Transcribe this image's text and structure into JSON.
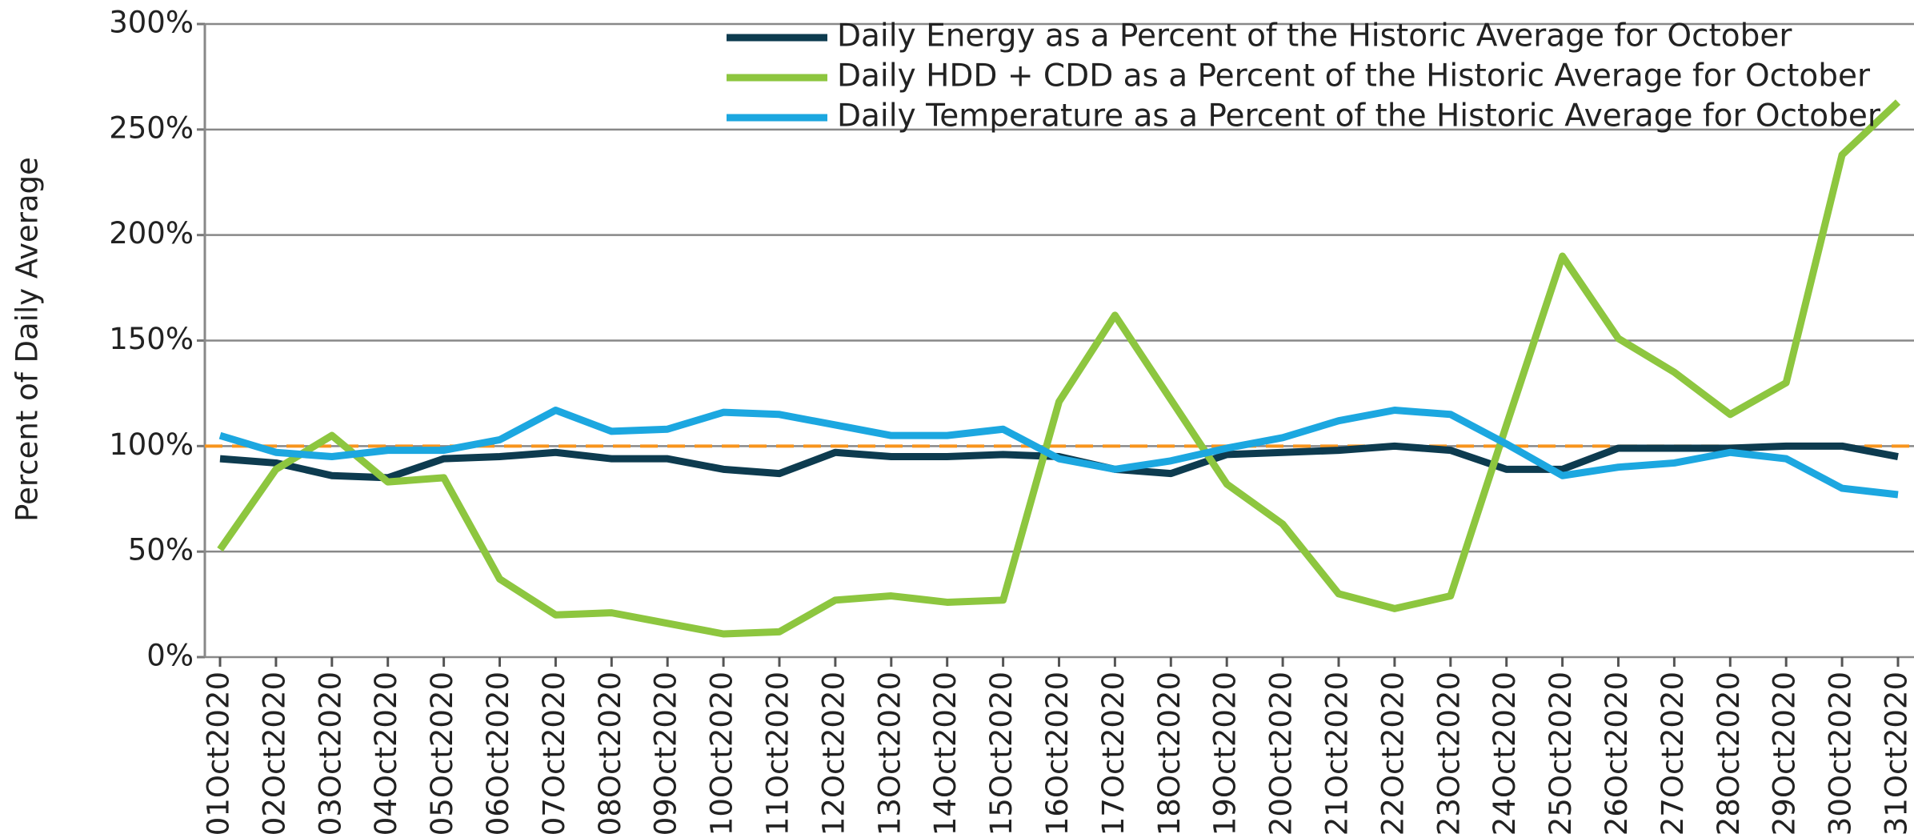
{
  "chart_data": {
    "type": "line",
    "y_label": "Percent of Daily Average",
    "categories": [
      "01Oct2020",
      "02Oct2020",
      "03Oct2020",
      "04Oct2020",
      "05Oct2020",
      "06Oct2020",
      "07Oct2020",
      "08Oct2020",
      "09Oct2020",
      "10Oct2020",
      "11Oct2020",
      "12Oct2020",
      "13Oct2020",
      "14Oct2020",
      "15Oct2020",
      "16Oct2020",
      "17Oct2020",
      "18Oct2020",
      "19Oct2020",
      "20Oct2020",
      "21Oct2020",
      "22Oct2020",
      "23Oct2020",
      "24Oct2020",
      "25Oct2020",
      "26Oct2020",
      "27Oct2020",
      "28Oct2020",
      "29Oct2020",
      "30Oct2020",
      "31Oct2020"
    ],
    "series": [
      {
        "name": "Daily Energy as a Percent of the Historic Average for October",
        "color": "#0d3b4f",
        "values": [
          94,
          92,
          86,
          85,
          94,
          95,
          97,
          94,
          94,
          89,
          87,
          97,
          95,
          95,
          96,
          95,
          89,
          87,
          96,
          97,
          98,
          100,
          98,
          89,
          89,
          99,
          99,
          99,
          100,
          100,
          95
        ]
      },
      {
        "name": "Daily HDD + CDD as a Percent of the Historic Average for October",
        "color": "#8dc63f",
        "values": [
          51,
          89,
          105,
          83,
          85,
          37,
          20,
          21,
          16,
          11,
          12,
          27,
          29,
          26,
          27,
          121,
          162,
          122,
          82,
          63,
          30,
          23,
          29,
          110,
          190,
          151,
          135,
          115,
          130,
          238,
          263
        ]
      },
      {
        "name": "Daily Temperature as a Percent of the Historic Average for October",
        "color": "#1ca7e0",
        "values": [
          105,
          97,
          95,
          98,
          98,
          103,
          117,
          107,
          108,
          116,
          115,
          110,
          105,
          105,
          108,
          94,
          89,
          93,
          99,
          104,
          112,
          117,
          115,
          101,
          86,
          90,
          92,
          97,
          94,
          80,
          77
        ]
      }
    ],
    "reference_line": {
      "value": 100,
      "color": "#f7941d"
    },
    "ylim": [
      0,
      300
    ],
    "yticks": [
      {
        "value": 0,
        "label": "0%"
      },
      {
        "value": 50,
        "label": "50%"
      },
      {
        "value": 100,
        "label": "100%"
      },
      {
        "value": 150,
        "label": "150%"
      },
      {
        "value": 200,
        "label": "200%"
      },
      {
        "value": 250,
        "label": "250%"
      },
      {
        "value": 300,
        "label": "300%"
      }
    ],
    "grid": true,
    "legend": "top-right"
  }
}
